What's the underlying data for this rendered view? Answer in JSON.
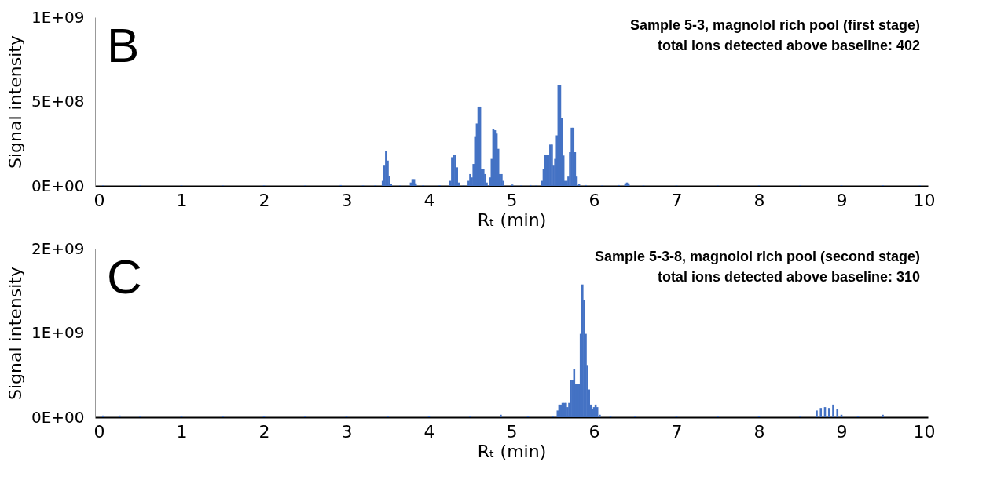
{
  "chart_data": [
    {
      "type": "bar",
      "title": "Sample 5-3, magnolol rich pool (first stage)",
      "subtitle": "total ions detected above baseline: 402",
      "annotations": [
        "B"
      ],
      "xlabel": "Rₜ (min)",
      "ylabel": "Signal intensity",
      "color": "#4472c4",
      "xlim": [
        0,
        10
      ],
      "xticks": [
        0,
        1,
        2,
        3,
        4,
        5,
        6,
        7,
        8,
        9,
        10
      ],
      "ylim": [
        0,
        1000000000
      ],
      "yticks": [
        {
          "value": 0,
          "label": "0E+00"
        },
        {
          "value": 500000000,
          "label": "5E+08"
        },
        {
          "value": 1000000000,
          "label": "1E+09"
        }
      ],
      "x": [
        0.05,
        0.5,
        1,
        1.5,
        2,
        2.5,
        2.93,
        3.2,
        3.35,
        3.44,
        3.46,
        3.48,
        3.5,
        3.52,
        3.54,
        3.65,
        3.78,
        3.8,
        3.82,
        3.84,
        3.93,
        4.13,
        4.26,
        4.28,
        4.3,
        4.32,
        4.34,
        4.36,
        4.42,
        4.48,
        4.5,
        4.52,
        4.54,
        4.56,
        4.58,
        4.6,
        4.62,
        4.64,
        4.66,
        4.68,
        4.7,
        4.74,
        4.76,
        4.78,
        4.8,
        4.82,
        4.84,
        4.86,
        4.88,
        4.9,
        5.01,
        5.12,
        5.23,
        5.3,
        5.37,
        5.39,
        5.41,
        5.43,
        5.45,
        5.47,
        5.49,
        5.51,
        5.53,
        5.55,
        5.57,
        5.59,
        5.61,
        5.63,
        5.65,
        5.67,
        5.69,
        5.71,
        5.73,
        5.75,
        5.77,
        5.79,
        5.82,
        5.9,
        6.1,
        6.3,
        6.38,
        6.4,
        6.42,
        6.6,
        7,
        7.5,
        8,
        8.5,
        9,
        9.5,
        9.95
      ],
      "values": [
        3000000,
        3000000,
        3000000,
        3000000,
        3000000,
        3000000,
        5000000,
        3000000,
        4000000,
        30000000,
        120000000,
        205000000,
        150000000,
        60000000,
        10000000,
        3000000,
        20000000,
        40000000,
        40000000,
        15000000,
        4000000,
        4000000,
        30000000,
        170000000,
        183000000,
        183000000,
        110000000,
        20000000,
        3000000,
        30000000,
        70000000,
        50000000,
        130000000,
        290000000,
        370000000,
        470000000,
        470000000,
        100000000,
        100000000,
        70000000,
        20000000,
        50000000,
        160000000,
        335000000,
        330000000,
        310000000,
        220000000,
        70000000,
        70000000,
        30000000,
        8000000,
        3000000,
        5000000,
        3000000,
        30000000,
        100000000,
        183000000,
        183000000,
        183000000,
        245000000,
        245000000,
        120000000,
        160000000,
        300000000,
        600000000,
        600000000,
        400000000,
        180000000,
        30000000,
        30000000,
        55000000,
        200000000,
        345000000,
        345000000,
        200000000,
        55000000,
        10000000,
        5000000,
        3000000,
        5000000,
        15000000,
        20000000,
        15000000,
        3000000,
        3000000,
        3000000,
        3000000,
        3000000,
        3000000,
        4000000,
        3000000
      ]
    },
    {
      "type": "bar",
      "title": "Sample 5-3-8, magnolol rich pool (second stage)",
      "subtitle": "total ions detected above baseline: 310",
      "annotations": [
        "C"
      ],
      "xlabel": "Rₜ (min)",
      "ylabel": "Signal intensity",
      "color": "#4472c4",
      "xlim": [
        0,
        10
      ],
      "xticks": [
        0,
        1,
        2,
        3,
        4,
        5,
        6,
        7,
        8,
        9,
        10
      ],
      "ylim": [
        0,
        2000000000
      ],
      "yticks": [
        {
          "value": 0,
          "label": "0E+00"
        },
        {
          "value": 1000000000,
          "label": "1E+09"
        },
        {
          "value": 2000000000,
          "label": "2E+09"
        }
      ],
      "x": [
        0.05,
        0.25,
        0.5,
        1,
        1.5,
        2,
        2.5,
        3,
        3.5,
        4,
        4.5,
        4.87,
        5.2,
        5.5,
        5.56,
        5.58,
        5.6,
        5.62,
        5.64,
        5.66,
        5.68,
        5.7,
        5.72,
        5.74,
        5.76,
        5.78,
        5.8,
        5.82,
        5.84,
        5.86,
        5.88,
        5.9,
        5.92,
        5.94,
        5.96,
        5.98,
        6,
        6.02,
        6.04,
        6.07,
        6.2,
        6.5,
        7,
        7.5,
        8,
        8.5,
        8.7,
        8.75,
        8.8,
        8.85,
        8.9,
        8.95,
        9,
        9.2,
        9.5
      ],
      "values": [
        20000000,
        20000000,
        10000000,
        10000000,
        10000000,
        10000000,
        10000000,
        10000000,
        10000000,
        10000000,
        10000000,
        30000000,
        10000000,
        10000000,
        80000000,
        150000000,
        150000000,
        170000000,
        170000000,
        170000000,
        120000000,
        170000000,
        440000000,
        440000000,
        570000000,
        400000000,
        400000000,
        400000000,
        990000000,
        1575000000,
        1390000000,
        990000000,
        620000000,
        330000000,
        150000000,
        100000000,
        120000000,
        150000000,
        120000000,
        30000000,
        10000000,
        10000000,
        10000000,
        10000000,
        10000000,
        10000000,
        80000000,
        110000000,
        120000000,
        110000000,
        150000000,
        100000000,
        30000000,
        10000000,
        30000000
      ]
    }
  ]
}
